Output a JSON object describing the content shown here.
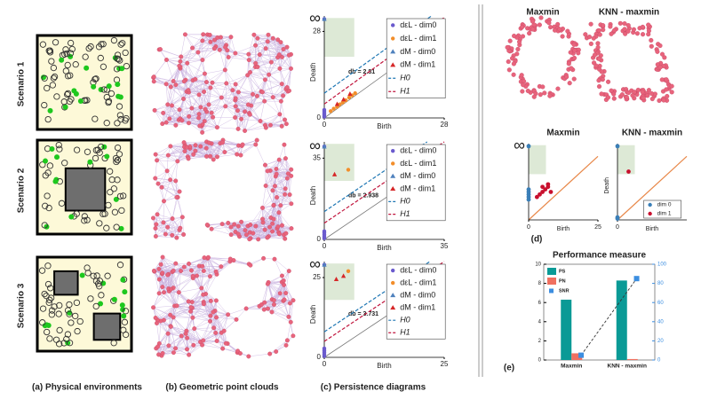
{
  "figure": {
    "row_labels": [
      "Scenario 1",
      "Scenario 2",
      "Scenario 3"
    ],
    "captions": [
      "(a) Physical environments",
      "(b) Geometric point clouds",
      "(c) Persistence diagrams",
      "(d)",
      "(e)"
    ],
    "cloud_titles": [
      "Maxmin",
      "KNN - maxmin"
    ]
  },
  "chart_data": [
    {
      "type": "persistence",
      "xlabel": "Birth",
      "ylabel": "Death",
      "xlim": [
        0,
        28
      ],
      "ylim": [
        0,
        33
      ],
      "xticks": [
        0,
        28
      ],
      "yticks": [
        0,
        28,
        {
          "value": 32,
          "label": "∞"
        }
      ],
      "annotation": "db = 2.81",
      "legend": true,
      "series": [
        {
          "name": "dεL - dim0",
          "color": "#6a5acd",
          "marker": "circle",
          "x": [
            0,
            0,
            0,
            0,
            0,
            0
          ],
          "values": [
            0.4,
            0.9,
            1.4,
            2,
            2.6,
            32
          ]
        },
        {
          "name": "dεL - dim1",
          "color": "#f28e2b",
          "marker": "circle",
          "x": [
            1.5,
            2.2,
            3,
            3.6,
            4.3,
            5,
            5.8,
            6.5,
            7.2
          ],
          "values": [
            2.2,
            3,
            3.6,
            4.4,
            5,
            5.7,
            6.6,
            7.3,
            8
          ]
        },
        {
          "name": "dM - dim0",
          "color": "#4f81bd",
          "marker": "triangle",
          "x": [
            0
          ],
          "values": [
            32
          ]
        },
        {
          "name": "dM - dim1",
          "color": "#d62728",
          "marker": "triangle",
          "x": [
            3,
            4.5,
            6
          ],
          "values": [
            4.5,
            6,
            7.8
          ]
        },
        {
          "name": "H0",
          "color": "#1f77b4",
          "dash": true,
          "x": [
            0,
            25
          ],
          "values": [
            8,
            33
          ]
        },
        {
          "name": "H1",
          "color": "#c0143c",
          "dash": true,
          "x": [
            0,
            28
          ],
          "values": [
            4.5,
            32.5
          ]
        }
      ]
    },
    {
      "type": "persistence",
      "xlabel": "Birth",
      "ylabel": "Death",
      "xlim": [
        0,
        35
      ],
      "ylim": [
        0,
        42
      ],
      "xticks": [
        0,
        35
      ],
      "yticks": [
        0,
        35,
        {
          "value": 40,
          "label": "∞"
        }
      ],
      "annotation": "db = 2.938",
      "legend": true,
      "series": [
        {
          "name": "dεL - dim0",
          "color": "#6a5acd",
          "marker": "circle",
          "x": [
            0,
            0,
            0,
            0,
            0,
            0
          ],
          "values": [
            0.5,
            1.2,
            2,
            2.8,
            3.5,
            40
          ]
        },
        {
          "name": "dεL - dim1",
          "color": "#f28e2b",
          "marker": "circle",
          "x": [
            7
          ],
          "values": [
            30
          ]
        },
        {
          "name": "dM - dim0",
          "color": "#4f81bd",
          "marker": "triangle",
          "x": [
            0
          ],
          "values": [
            40
          ]
        },
        {
          "name": "dM - dim1",
          "color": "#d62728",
          "marker": "triangle",
          "x": [
            3
          ],
          "values": [
            28
          ]
        },
        {
          "name": "H0",
          "color": "#1f77b4",
          "dash": true,
          "x": [
            0,
            30
          ],
          "values": [
            12,
            42
          ]
        },
        {
          "name": "H1",
          "color": "#c0143c",
          "dash": true,
          "x": [
            0,
            35
          ],
          "values": [
            7,
            42
          ]
        }
      ]
    },
    {
      "type": "persistence",
      "xlabel": "Birth",
      "ylabel": "Death",
      "xlim": [
        0,
        25
      ],
      "ylim": [
        0,
        30
      ],
      "xticks": [
        0,
        25
      ],
      "yticks": [
        0,
        25,
        {
          "value": 29,
          "label": "∞"
        }
      ],
      "annotation": "db = 3.731",
      "legend": true,
      "series": [
        {
          "name": "dεL - dim0",
          "color": "#6a5acd",
          "marker": "circle",
          "x": [
            0,
            0,
            0,
            0,
            0,
            0
          ],
          "values": [
            0.4,
            1,
            1.6,
            2.2,
            2.8,
            29
          ]
        },
        {
          "name": "dεL - dim1",
          "color": "#f28e2b",
          "marker": "circle",
          "x": [
            5
          ],
          "values": [
            27
          ]
        },
        {
          "name": "dM - dim0",
          "color": "#4f81bd",
          "marker": "triangle",
          "x": [
            0
          ],
          "values": [
            29
          ]
        },
        {
          "name": "dM - dim1",
          "color": "#d62728",
          "marker": "triangle",
          "x": [
            2.5,
            4
          ],
          "values": [
            24.5,
            25.5
          ]
        },
        {
          "name": "H0",
          "color": "#1f77b4",
          "dash": true,
          "x": [
            0,
            22
          ],
          "values": [
            8,
            30
          ]
        },
        {
          "name": "H1",
          "color": "#c0143c",
          "dash": true,
          "x": [
            0,
            25
          ],
          "values": [
            5,
            30
          ]
        }
      ]
    },
    {
      "type": "persistence",
      "title": "Maxmin",
      "xlabel": "Birth",
      "xlim": [
        0,
        25
      ],
      "ylim": [
        0,
        30
      ],
      "xticks": [
        0,
        25
      ],
      "yticks": [
        {
          "value": 29,
          "label": "∞"
        }
      ],
      "legend": false,
      "series": [
        {
          "name": "dim 0",
          "color": "#3a7fb8",
          "marker": "circle",
          "x": [
            0,
            0,
            0,
            0,
            0,
            0
          ],
          "values": [
            8,
            9,
            10,
            11,
            12,
            29
          ]
        },
        {
          "name": "dim 1",
          "color": "#c8102e",
          "marker": "circle",
          "x": [
            3,
            4,
            5,
            6,
            7,
            8,
            5,
            7
          ],
          "values": [
            9,
            10,
            11,
            12,
            13,
            11,
            13,
            14
          ]
        }
      ]
    },
    {
      "type": "persistence",
      "title": "KNN - maxmin",
      "xlabel": "Birth",
      "ylabel": "Death",
      "xlim": [
        0,
        25
      ],
      "ylim": [
        0,
        30
      ],
      "xticks": [
        0
      ],
      "yticks": [],
      "legend": true,
      "series": [
        {
          "name": "dim 0",
          "color": "#3a7fb8",
          "marker": "circle",
          "x": [
            0,
            0,
            0
          ],
          "values": [
            0.5,
            1,
            29
          ]
        },
        {
          "name": "dim 1",
          "color": "#c8102e",
          "marker": "circle",
          "x": [
            4
          ],
          "values": [
            19
          ]
        }
      ]
    },
    {
      "type": "bar",
      "title": "Performance measure",
      "categories": [
        "Maxmin",
        "KNN - maxmin"
      ],
      "ylim": [
        0,
        10
      ],
      "yticks": [
        0,
        2,
        4,
        6,
        8,
        10
      ],
      "y2lim": [
        0,
        100
      ],
      "y2ticks": [
        0,
        20,
        40,
        60,
        80,
        100
      ],
      "series": [
        {
          "name": "PS",
          "color": "#0a9a96",
          "values": [
            6.3,
            8.3
          ]
        },
        {
          "name": "PN",
          "color": "#f07060",
          "values": [
            0.7,
            0.1
          ]
        },
        {
          "name": "SNR",
          "color": "#3c8ee0",
          "axis": "y2",
          "values": [
            5,
            85
          ]
        }
      ]
    }
  ]
}
